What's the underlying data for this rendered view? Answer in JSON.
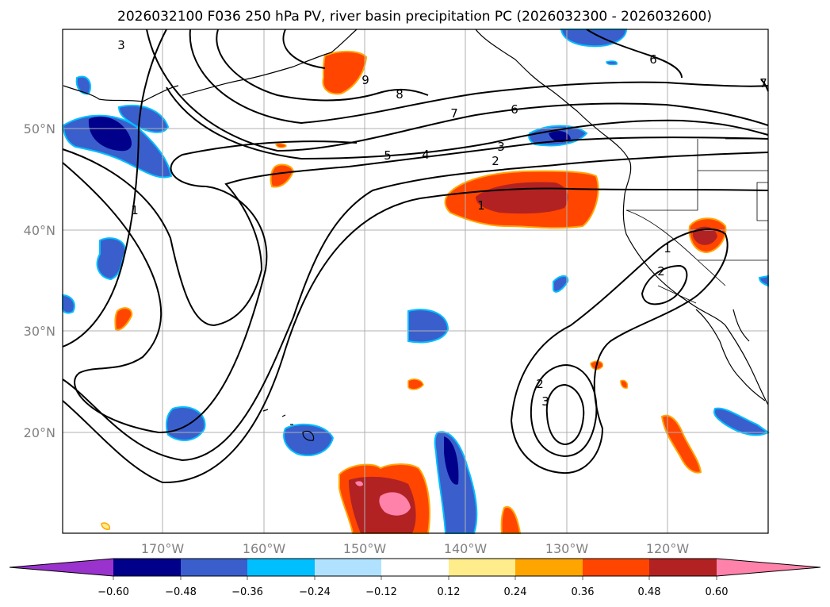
{
  "map": {
    "title": "2026032100 F036 250 hPa PV, river basin precipitation PC (2026032300 - 2026032600)",
    "lon_labels": [
      "170°W",
      "160°W",
      "150°W",
      "140°W",
      "130°W",
      "120°W"
    ],
    "lat_labels": [
      "50°N",
      "40°N",
      "30°N",
      "20°N"
    ],
    "colorbar": {
      "ticks": [
        "−0.60",
        "−0.48",
        "−0.36",
        "−0.24",
        "−0.12",
        "0.12",
        "0.24",
        "0.36",
        "0.48",
        "0.60"
      ],
      "colors": [
        "#9a32cd",
        "#00008b",
        "#3a5fcd",
        "#00bfff",
        "#b0e2ff",
        "#ffffff",
        "#ffec8b",
        "#ffa500",
        "#ff4500",
        "#b22222",
        "#ff82ab"
      ]
    },
    "contour_labels": [
      "3",
      "9",
      "8",
      "7",
      "6",
      "6",
      "5",
      "4",
      "3",
      "2",
      "1",
      "1",
      "1",
      "2",
      "2",
      "3",
      "7"
    ]
  }
}
